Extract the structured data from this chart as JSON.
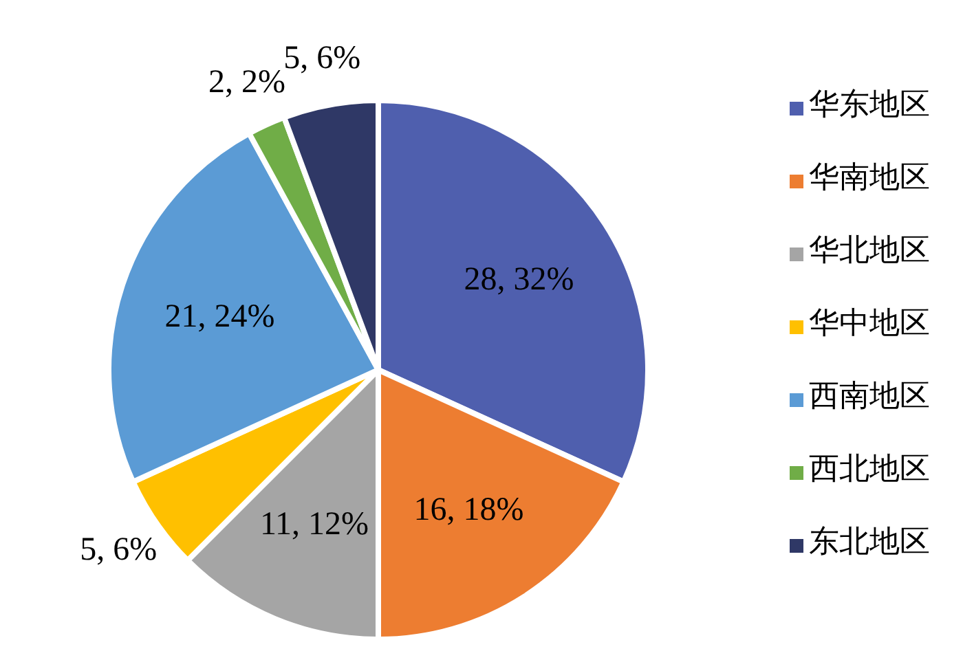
{
  "chart_data": {
    "type": "pie",
    "categories": [
      "华东地区",
      "华南地区",
      "华北地区",
      "华中地区",
      "西南地区",
      "西北地区",
      "东北地区"
    ],
    "values": [
      28,
      16,
      11,
      5,
      21,
      2,
      5
    ],
    "colors": [
      "#4f5fae",
      "#ed7d31",
      "#a5a5a5",
      "#ffc000",
      "#5b9bd5",
      "#70ad47",
      "#2f3866"
    ],
    "value_labels": [
      "28, 32%",
      "16, 18%",
      "11, 12%",
      "5, 6%",
      "21, 24%",
      "2, 2%",
      "5, 6%"
    ],
    "legend": "right"
  }
}
